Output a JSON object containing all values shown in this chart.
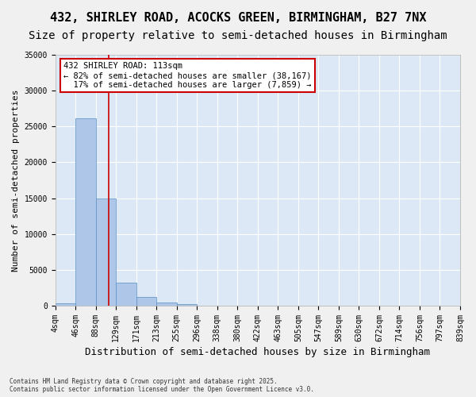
{
  "title": "432, SHIRLEY ROAD, ACOCKS GREEN, BIRMINGHAM, B27 7NX",
  "subtitle": "Size of property relative to semi-detached houses in Birmingham",
  "xlabel": "Distribution of semi-detached houses by size in Birmingham",
  "ylabel": "Number of semi-detached properties",
  "bin_labels": [
    "4sqm",
    "46sqm",
    "88sqm",
    "129sqm",
    "171sqm",
    "213sqm",
    "255sqm",
    "296sqm",
    "338sqm",
    "380sqm",
    "422sqm",
    "463sqm",
    "505sqm",
    "547sqm",
    "589sqm",
    "630sqm",
    "672sqm",
    "714sqm",
    "756sqm",
    "797sqm",
    "839sqm"
  ],
  "bar_values": [
    300,
    26100,
    15000,
    3200,
    1200,
    450,
    200,
    50,
    10,
    0,
    0,
    0,
    0,
    0,
    0,
    0,
    0,
    0,
    0,
    0
  ],
  "bar_color": "#aec6e8",
  "bar_edge_color": "#5a8fc4",
  "property_line_x": 2.65,
  "annotation_text": "432 SHIRLEY ROAD: 113sqm\n← 82% of semi-detached houses are smaller (38,167)\n  17% of semi-detached houses are larger (7,859) →",
  "vline_color": "#cc0000",
  "annotation_box_color": "#ffffff",
  "annotation_box_edge": "#cc0000",
  "ylim": [
    0,
    35000
  ],
  "yticks": [
    0,
    5000,
    10000,
    15000,
    20000,
    25000,
    30000,
    35000
  ],
  "background_color": "#dce8f5",
  "grid_color": "#ffffff",
  "footer": "Contains HM Land Registry data © Crown copyright and database right 2025.\nContains public sector information licensed under the Open Government Licence v3.0.",
  "title_fontsize": 11,
  "subtitle_fontsize": 10,
  "tick_fontsize": 7,
  "ylabel_fontsize": 8,
  "xlabel_fontsize": 9
}
